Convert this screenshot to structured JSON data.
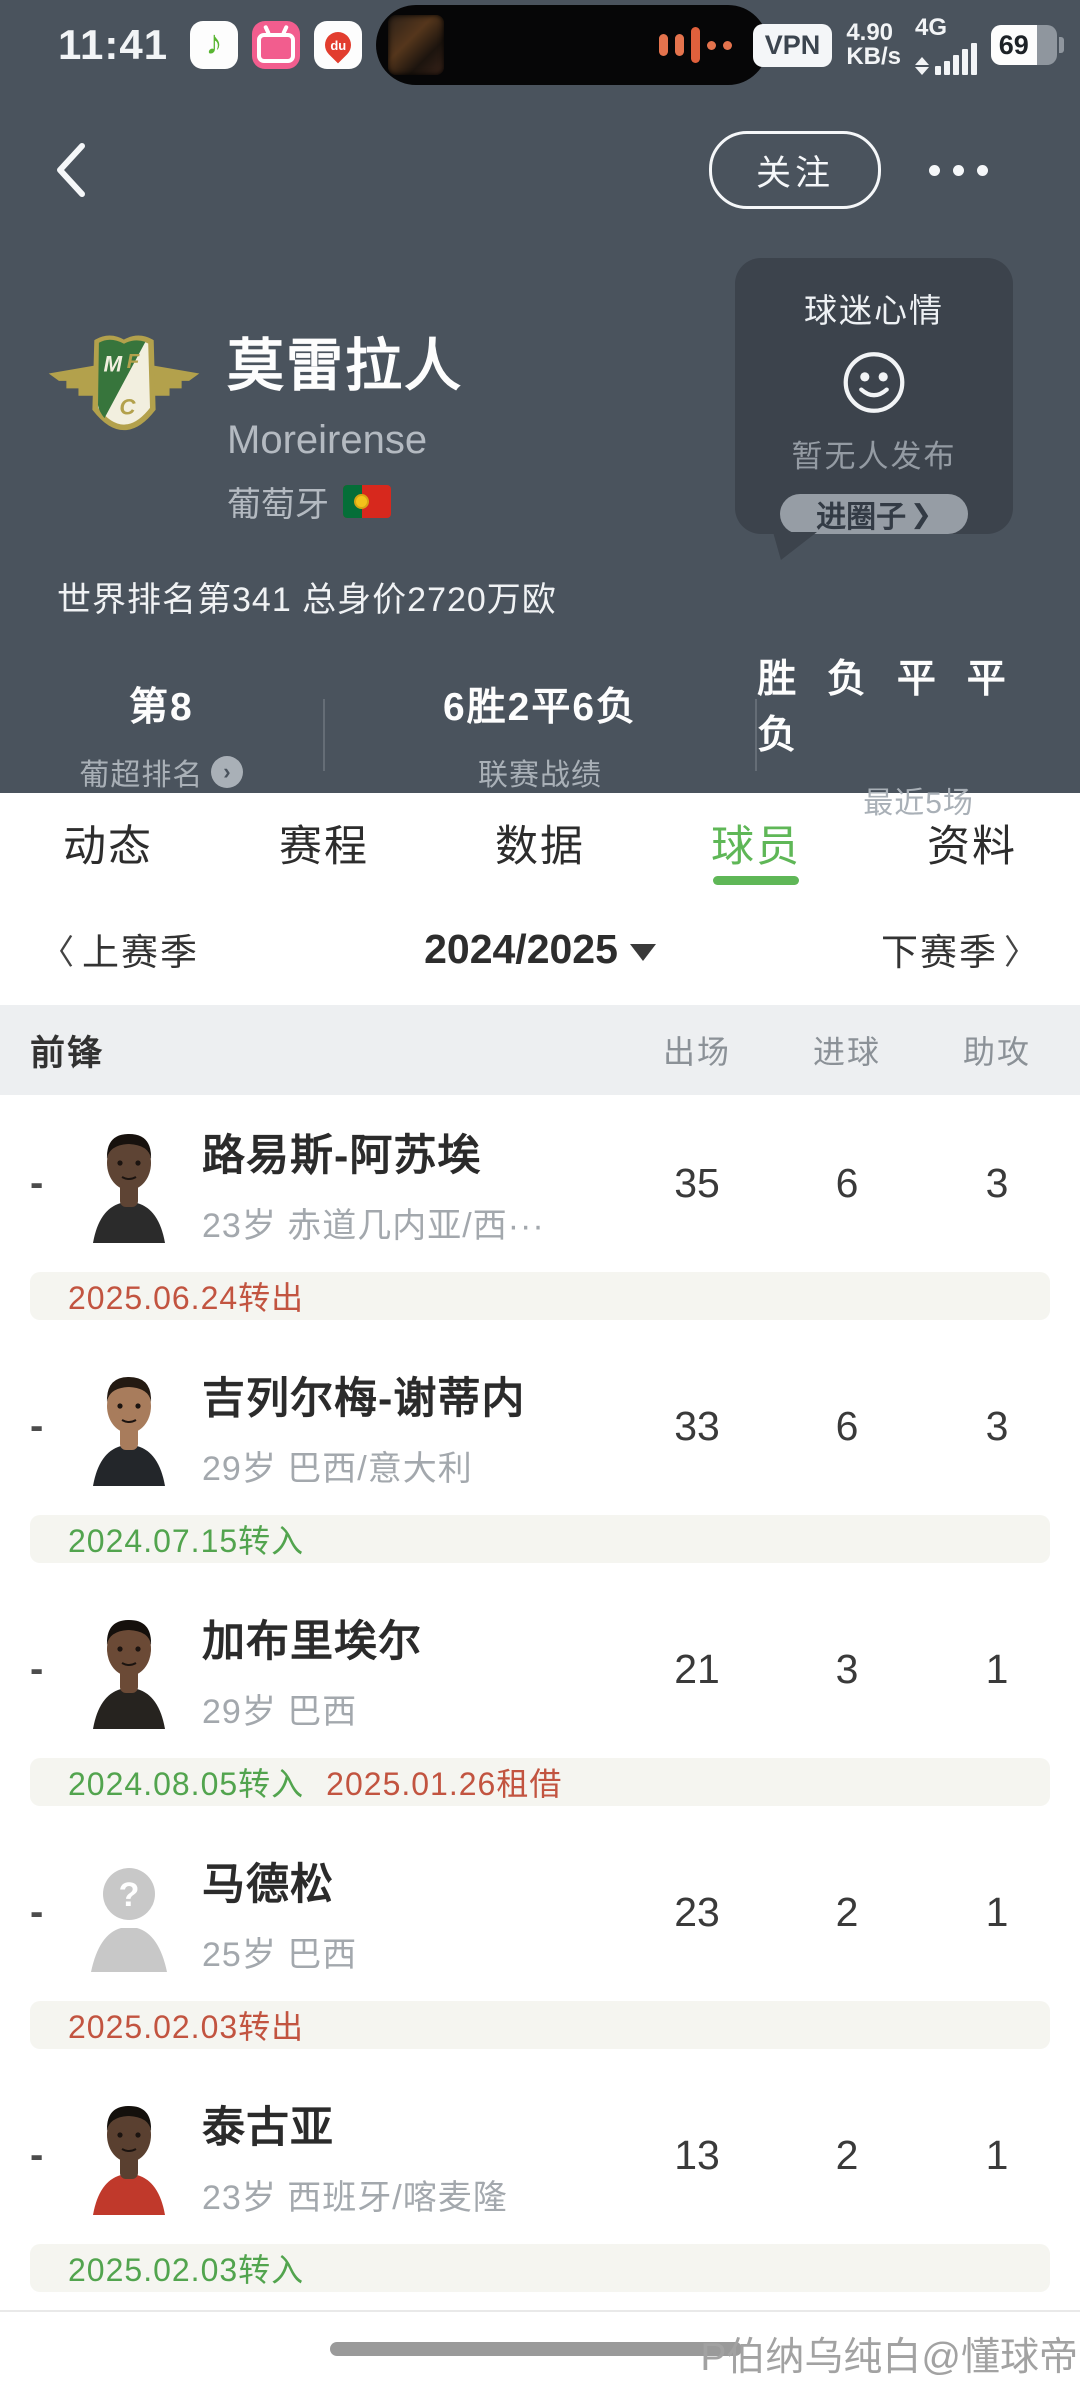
{
  "colors": {
    "top_background": "#4a535d",
    "bubble_background": "#3c434c",
    "accent_green": "#5fb757",
    "note_in_green": "#52a44e",
    "note_out_red": "#c25440",
    "strip_background": "#f5f5f0",
    "group_header_background": "#edeff1",
    "waveform_orange": "#e4734d"
  },
  "status_bar": {
    "time": "11:41",
    "app_icons": [
      "qq-music-icon",
      "bilibili-icon",
      "baidu-maps-icon"
    ],
    "vpn_label": "VPN",
    "net_speed_value": "4.90",
    "net_speed_unit": "KB/s",
    "net_type": "4G",
    "battery_percent": "69"
  },
  "nav": {
    "follow_label": "关注"
  },
  "team": {
    "name_cn": "莫雷拉人",
    "name_en": "Moreirense",
    "country": "葡萄牙",
    "world_rank_line": "世界排名第341 总身价2720万欧"
  },
  "mood": {
    "title": "球迷心情",
    "empty_text": "暂无人发布",
    "cta_label": "进圈子",
    "cta_arrow": "❯"
  },
  "stats": [
    {
      "value": "第8",
      "label": "葡超排名",
      "arrow": "›"
    },
    {
      "value": "6胜2平6负",
      "label": "联赛战绩"
    },
    {
      "value": "胜 负 平 平 负",
      "label": "最近5场"
    }
  ],
  "tabs": [
    {
      "label": "动态"
    },
    {
      "label": "赛程"
    },
    {
      "label": "数据"
    },
    {
      "label": "球员"
    },
    {
      "label": "资料"
    }
  ],
  "season": {
    "prev": "上赛季",
    "current": "2024/2025",
    "next": "下赛季",
    "prev_chevron": "〈",
    "next_chevron": "〉"
  },
  "table": {
    "group": "前锋",
    "columns": [
      "出场",
      "进球",
      "助攻"
    ]
  },
  "players": [
    {
      "rank": "-",
      "name": "路易斯-阿苏埃",
      "meta": "23岁 赤道几内亚/西···",
      "stats": [
        "35",
        "6",
        "3"
      ],
      "notes": [
        {
          "text": "2025.06.24转出",
          "type": "out"
        }
      ],
      "avatar": {
        "kind": "photo",
        "skin": "#5e4434",
        "hair": "#17110d",
        "shirt": "#2b2b2b"
      }
    },
    {
      "rank": "-",
      "name": "吉列尔梅-谢蒂内",
      "meta": "29岁 巴西/意大利",
      "stats": [
        "33",
        "6",
        "3"
      ],
      "notes": [
        {
          "text": "2024.07.15转入",
          "type": "in"
        }
      ],
      "avatar": {
        "kind": "photo",
        "skin": "#a87c5c",
        "hair": "#241a12",
        "shirt": "#23262a"
      }
    },
    {
      "rank": "-",
      "name": "加布里埃尔",
      "meta": "29岁 巴西",
      "stats": [
        "21",
        "3",
        "1"
      ],
      "notes": [
        {
          "text": "2024.08.05转入",
          "type": "in"
        },
        {
          "text": "2025.01.26租借",
          "type": "out"
        }
      ],
      "avatar": {
        "kind": "photo",
        "skin": "#6b4a36",
        "hair": "#15100c",
        "shirt": "#26231f"
      }
    },
    {
      "rank": "-",
      "name": "马德松",
      "meta": "25岁 巴西",
      "stats": [
        "23",
        "2",
        "1"
      ],
      "notes": [
        {
          "text": "2025.02.03转出",
          "type": "out"
        }
      ],
      "avatar": {
        "kind": "placeholder",
        "question_mark": "?"
      }
    },
    {
      "rank": "-",
      "name": "泰古亚",
      "meta": "23岁 西班牙/喀麦隆",
      "stats": [
        "13",
        "2",
        "1"
      ],
      "notes": [
        {
          "text": "2025.02.03转入",
          "type": "in"
        }
      ],
      "avatar": {
        "kind": "photo",
        "skin": "#5a4030",
        "hair": "#14100c",
        "shirt": "#c0392b"
      }
    }
  ],
  "footer": {
    "watermark": "P伯纳乌纯白@懂球帝"
  }
}
